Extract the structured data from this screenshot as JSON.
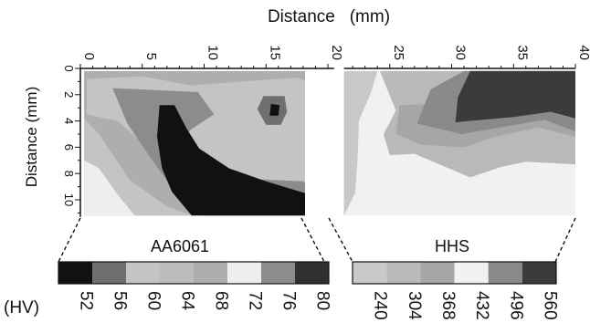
{
  "chart_data": {
    "type": "heatmap",
    "title": "Distance   (mm)",
    "xlabel": "Distance   (mm)",
    "ylabel": "Distance (mm)",
    "x_ticks": [
      "0",
      "5",
      "10",
      "15",
      "20",
      "25",
      "30",
      "35",
      "40"
    ],
    "y_ticks": [
      "0",
      "2",
      "4",
      "6",
      "8",
      "10"
    ],
    "xlim": [
      0,
      40
    ],
    "ylim": [
      0,
      11.3
    ],
    "unit_label": "(HV)",
    "panels": [
      {
        "material": "AA6061",
        "x_range": [
          0,
          20
        ],
        "levels": [
          "52",
          "56",
          "60",
          "64",
          "68",
          "72",
          "76",
          "80"
        ],
        "level_colors": [
          "#111111",
          "#6f6f6f",
          "#c4c4c4",
          "#bcbcbc",
          "#aeaeae",
          "#eeeeee",
          "#8c8c8c",
          "#303030"
        ],
        "contours": [
          {
            "level_index": 4,
            "points": [
              [
                0.3,
                0.2
              ],
              [
                19.8,
                0.2
              ],
              [
                20.5,
                11.2
              ],
              [
                0.3,
                11.2
              ]
            ]
          },
          {
            "level_index": 2,
            "points": [
              [
                0.5,
                0.8
              ],
              [
                5,
                0.6
              ],
              [
                9,
                1.3
              ],
              [
                13,
                1
              ],
              [
                17.5,
                0.7
              ],
              [
                19.8,
                1.5
              ],
              [
                19.5,
                6
              ],
              [
                18.5,
                8.8
              ],
              [
                16,
                9.3
              ],
              [
                10,
                8.5
              ],
              [
                6,
                6.5
              ],
              [
                3,
                4
              ],
              [
                0.5,
                3.5
              ]
            ]
          },
          {
            "level_index": 2,
            "points": [
              [
                0.3,
                3.8
              ],
              [
                1.5,
                5
              ],
              [
                4,
                8.5
              ],
              [
                7,
                10.5
              ],
              [
                9,
                11.2
              ],
              [
                0.3,
                11.2
              ]
            ]
          },
          {
            "level_index": 6,
            "points": [
              [
                2.6,
                1.5
              ],
              [
                9.5,
                1.8
              ],
              [
                10.8,
                3.5
              ],
              [
                9,
                4.6
              ],
              [
                8.2,
                5.4
              ],
              [
                10.2,
                6.9
              ],
              [
                13.5,
                8.4
              ],
              [
                18,
                8.6
              ],
              [
                19.2,
                9.4
              ],
              [
                19,
                11.2
              ],
              [
                10,
                11.2
              ],
              [
                7.2,
                8.8
              ],
              [
                5.3,
                6.3
              ],
              [
                3.8,
                4.2
              ]
            ]
          },
          {
            "level_index": 0,
            "points": [
              [
                6.4,
                2.8
              ],
              [
                7.6,
                2.8
              ],
              [
                8.6,
                4.6
              ],
              [
                9.6,
                6.1
              ],
              [
                12,
                7.6
              ],
              [
                15,
                8.6
              ],
              [
                18.5,
                9.6
              ],
              [
                19.2,
                11.2
              ],
              [
                9,
                11.2
              ],
              [
                7.4,
                9.4
              ],
              [
                6.6,
                7.6
              ],
              [
                6.2,
                5.2
              ]
            ]
          },
          {
            "level_index": 5,
            "points": [
              [
                0.3,
                7
              ],
              [
                1.5,
                7.6
              ],
              [
                3,
                9.6
              ],
              [
                4.4,
                11.2
              ],
              [
                0.3,
                11.2
              ]
            ]
          },
          {
            "level_index": 1,
            "points": [
              [
                14.8,
                2.1
              ],
              [
                16.5,
                2.1
              ],
              [
                16.7,
                3.3
              ],
              [
                16.2,
                4.3
              ],
              [
                15,
                4.3
              ],
              [
                14.3,
                3.1
              ]
            ]
          },
          {
            "level_index": 0,
            "points": [
              [
                15.4,
                2.7
              ],
              [
                16.1,
                2.8
              ],
              [
                16,
                3.6
              ],
              [
                15.3,
                3.6
              ]
            ]
          }
        ]
      },
      {
        "material": "HHS",
        "x_range": [
          21,
          40
        ],
        "levels": [
          "240",
          "304",
          "368",
          "432",
          "496",
          "560"
        ],
        "level_colors": [
          "#c8c8c8",
          "#b9b9b9",
          "#a6a6a6",
          "#f1f1f1",
          "#8a8a8a",
          "#3b3b3b"
        ],
        "contours": [
          {
            "level_index": 3,
            "points": [
              [
                21.3,
                0.2
              ],
              [
                40,
                0.2
              ],
              [
                40,
                11.2
              ],
              [
                21.3,
                11.2
              ]
            ]
          },
          {
            "level_index": 0,
            "points": [
              [
                21.3,
                0.2
              ],
              [
                24,
                0.2
              ],
              [
                23.5,
                1.8
              ],
              [
                22.5,
                4
              ],
              [
                22.4,
                7
              ],
              [
                22.2,
                9.5
              ],
              [
                21.3,
                11.2
              ]
            ]
          },
          {
            "level_index": 1,
            "points": [
              [
                24.2,
                0.2
              ],
              [
                40,
                0.2
              ],
              [
                40,
                7.3
              ],
              [
                36,
                7.1
              ],
              [
                34,
                7.5
              ],
              [
                31.5,
                8.3
              ],
              [
                29,
                7.3
              ],
              [
                27,
                6.5
              ],
              [
                25,
                6.6
              ],
              [
                24.5,
                5
              ],
              [
                25.5,
                3.2
              ]
            ]
          },
          {
            "level_index": 2,
            "points": [
              [
                25.8,
                2.8
              ],
              [
                29,
                2.7
              ],
              [
                30,
                1.6
              ],
              [
                31.5,
                0.2
              ],
              [
                40,
                0.2
              ],
              [
                40,
                5.2
              ],
              [
                37,
                4.5
              ],
              [
                33.5,
                5.2
              ],
              [
                31,
                6
              ],
              [
                27.5,
                5.8
              ],
              [
                25.5,
                5
              ]
            ]
          },
          {
            "level_index": 4,
            "points": [
              [
                28.3,
                1.6
              ],
              [
                31,
                0.2
              ],
              [
                40,
                0.2
              ],
              [
                40,
                4.8
              ],
              [
                37.5,
                3.9
              ],
              [
                34.5,
                4.4
              ],
              [
                30.8,
                5
              ],
              [
                27.2,
                4.2
              ]
            ]
          },
          {
            "level_index": 5,
            "points": [
              [
                31.5,
                0.2
              ],
              [
                40,
                0.2
              ],
              [
                40,
                3.8
              ],
              [
                38,
                3.3
              ],
              [
                35,
                3.7
              ],
              [
                30.3,
                4.1
              ],
              [
                30.5,
                2.2
              ]
            ]
          }
        ]
      }
    ]
  }
}
